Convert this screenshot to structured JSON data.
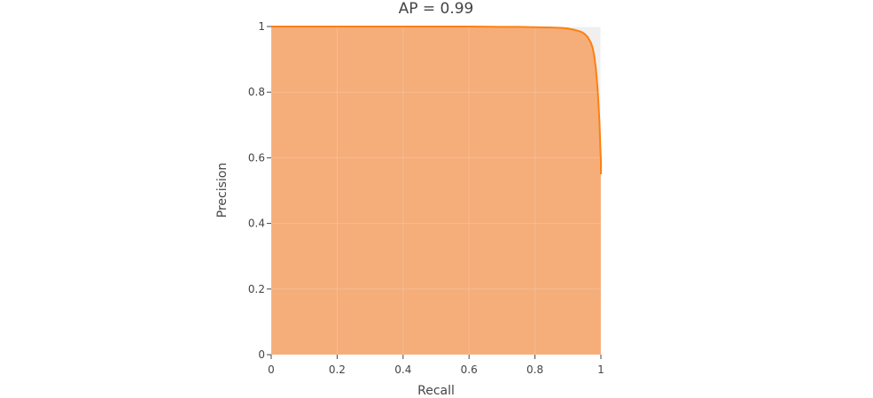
{
  "chart_data": {
    "type": "area",
    "title": "AP = 0.99",
    "xlabel": "Recall",
    "ylabel": "Precision",
    "xlim": [
      0,
      1
    ],
    "ylim": [
      0,
      1
    ],
    "x_ticks": [
      "0",
      "0.2",
      "0.4",
      "0.6",
      "0.8",
      "1"
    ],
    "y_ticks": [
      "0",
      "0.2",
      "0.4",
      "0.6",
      "0.8",
      "1"
    ],
    "grid": true,
    "legend": "none",
    "colors": {
      "line": "#ff7f0e",
      "fill": "#f5ad7a",
      "plot_background": "#efefef"
    },
    "series": [
      {
        "x": [
          0,
          0.1,
          0.2,
          0.3,
          0.4,
          0.5,
          0.6,
          0.7,
          0.75,
          0.8,
          0.85,
          0.88,
          0.9,
          0.92,
          0.94,
          0.95,
          0.96,
          0.97,
          0.975,
          0.98,
          0.985,
          0.99,
          0.993,
          0.996,
          0.998,
          1.0,
          1.0
        ],
        "y": [
          1.0,
          1.0,
          1.0,
          1.0,
          1.0,
          1.0,
          1.0,
          0.999,
          0.999,
          0.998,
          0.997,
          0.996,
          0.994,
          0.99,
          0.984,
          0.978,
          0.968,
          0.95,
          0.935,
          0.91,
          0.87,
          0.81,
          0.76,
          0.7,
          0.64,
          0.59,
          0.55
        ]
      }
    ]
  }
}
